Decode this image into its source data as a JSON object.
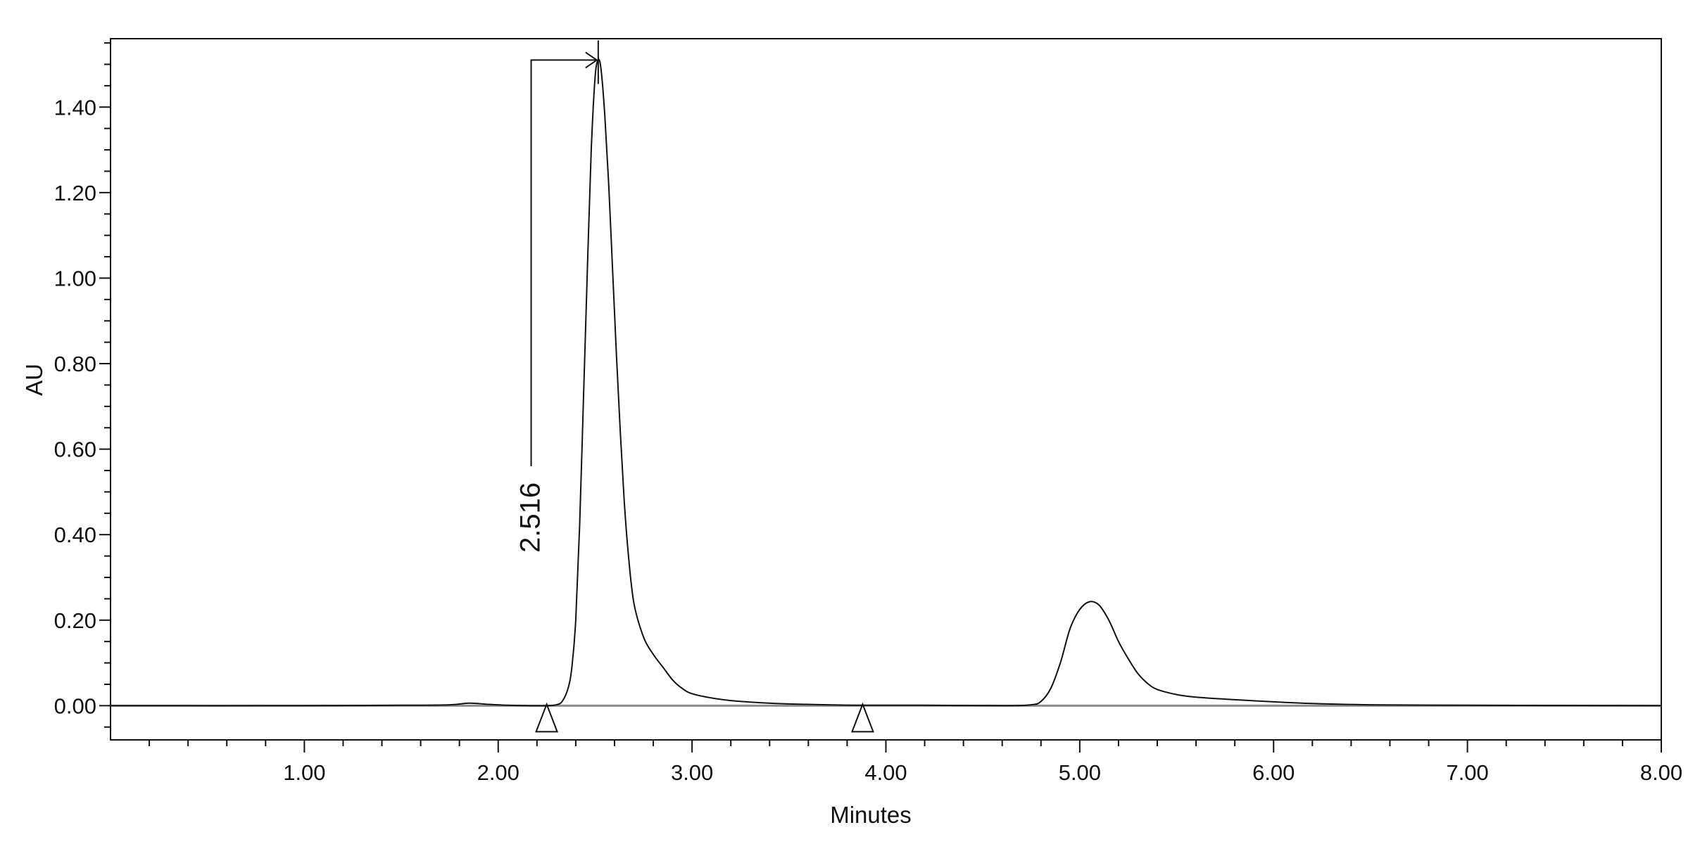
{
  "chart_data": {
    "type": "line",
    "title": "",
    "xlabel": "Minutes",
    "ylabel": "AU",
    "xlim": [
      0,
      8.0
    ],
    "ylim": [
      -0.08,
      1.56
    ],
    "grid": false,
    "legend": "none",
    "x_ticks": [
      {
        "value": 1.0,
        "label": "1.00"
      },
      {
        "value": 2.0,
        "label": "2.00"
      },
      {
        "value": 3.0,
        "label": "3.00"
      },
      {
        "value": 4.0,
        "label": "4.00"
      },
      {
        "value": 5.0,
        "label": "5.00"
      },
      {
        "value": 6.0,
        "label": "6.00"
      },
      {
        "value": 7.0,
        "label": "7.00"
      },
      {
        "value": 8.0,
        "label": "8.00"
      }
    ],
    "y_ticks": [
      {
        "value": 0.0,
        "label": "0.00"
      },
      {
        "value": 0.2,
        "label": "0.20"
      },
      {
        "value": 0.4,
        "label": "0.40"
      },
      {
        "value": 0.6,
        "label": "0.60"
      },
      {
        "value": 0.8,
        "label": "0.80"
      },
      {
        "value": 1.0,
        "label": "1.00"
      },
      {
        "value": 1.2,
        "label": "1.20"
      },
      {
        "value": 1.4,
        "label": "1.40"
      }
    ],
    "series": [
      {
        "color": "#111111",
        "x": [
          0.0,
          1.0,
          1.5,
          1.75,
          1.85,
          1.95,
          2.05,
          2.15,
          2.25,
          2.3,
          2.33,
          2.36,
          2.38,
          2.4,
          2.42,
          2.44,
          2.46,
          2.48,
          2.5,
          2.516,
          2.53,
          2.55,
          2.57,
          2.59,
          2.61,
          2.63,
          2.65,
          2.67,
          2.7,
          2.75,
          2.8,
          2.85,
          2.9,
          2.95,
          3.0,
          3.1,
          3.2,
          3.35,
          3.5,
          3.7,
          3.9,
          4.2,
          4.6,
          4.75,
          4.8,
          4.85,
          4.9,
          4.95,
          5.0,
          5.05,
          5.1,
          5.15,
          5.2,
          5.25,
          5.3,
          5.35,
          5.4,
          5.5,
          5.6,
          5.8,
          6.0,
          6.2,
          6.5,
          7.0,
          8.0
        ],
        "y": [
          0.0,
          0.0,
          0.001,
          0.002,
          0.006,
          0.003,
          0.001,
          0.0,
          0.0,
          0.002,
          0.01,
          0.04,
          0.09,
          0.2,
          0.42,
          0.72,
          1.02,
          1.3,
          1.47,
          1.51,
          1.49,
          1.38,
          1.22,
          1.02,
          0.82,
          0.64,
          0.48,
          0.36,
          0.24,
          0.16,
          0.12,
          0.09,
          0.06,
          0.04,
          0.028,
          0.018,
          0.012,
          0.007,
          0.004,
          0.002,
          0.001,
          0.001,
          0.0,
          0.002,
          0.01,
          0.04,
          0.1,
          0.18,
          0.225,
          0.243,
          0.235,
          0.2,
          0.15,
          0.11,
          0.075,
          0.052,
          0.038,
          0.026,
          0.02,
          0.014,
          0.009,
          0.005,
          0.002,
          0.001,
          0.0
        ]
      }
    ],
    "baseline": {
      "y": 0.0,
      "color": "#8c8c8c"
    },
    "markers": [
      {
        "x": 2.25,
        "shape": "triangle"
      },
      {
        "x": 3.88,
        "shape": "triangle"
      }
    ],
    "annotations": [
      {
        "text": "2.516",
        "x": 2.516,
        "y": 1.51,
        "bracket_x": 2.17,
        "bracket_y": 0.56
      }
    ]
  }
}
